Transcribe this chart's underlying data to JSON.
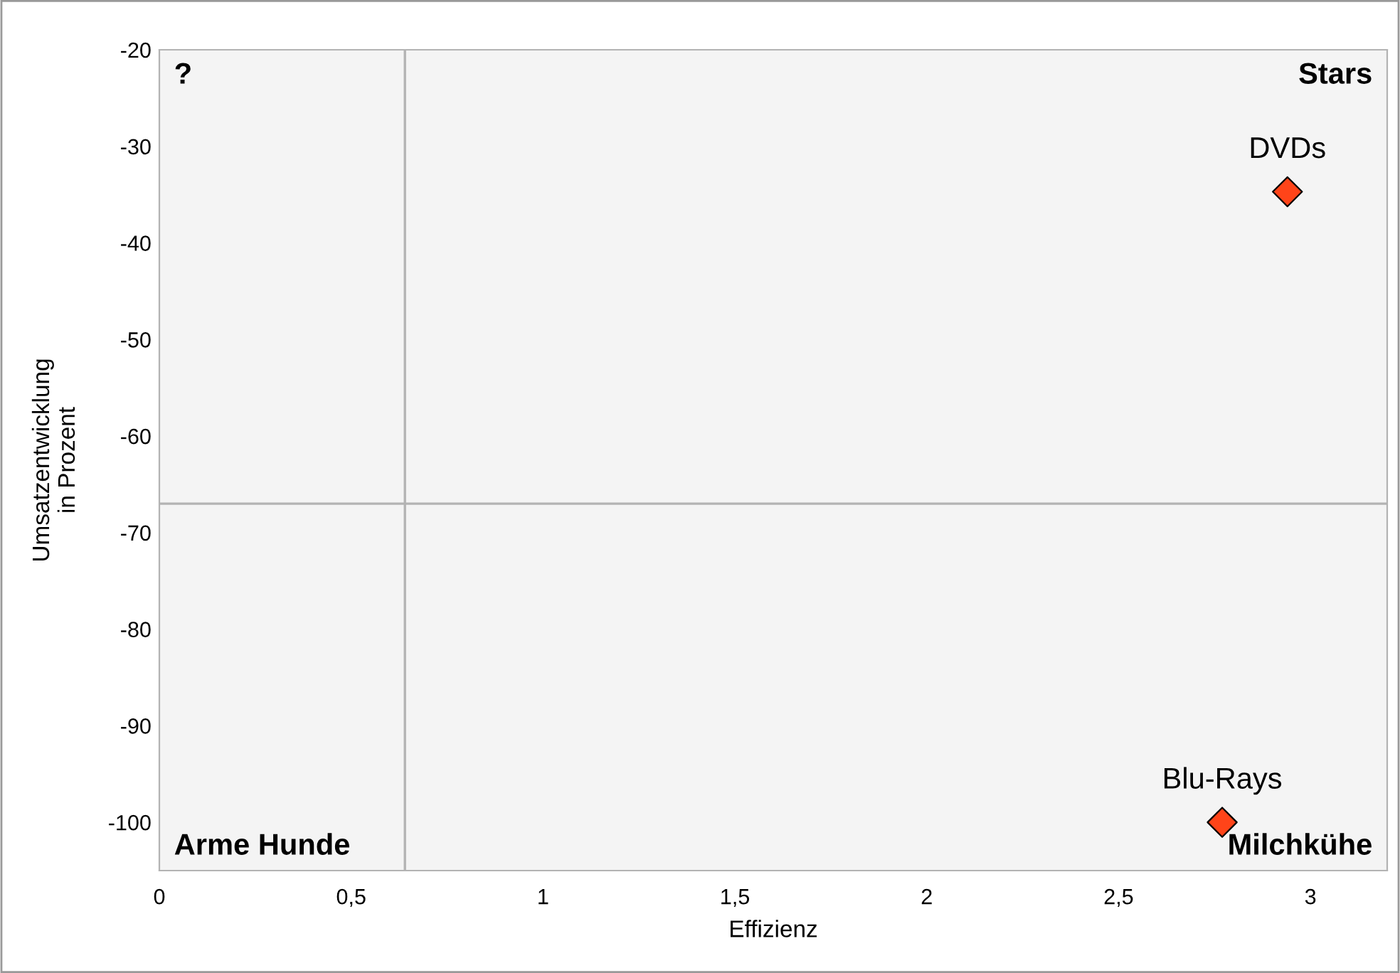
{
  "chart_data": {
    "type": "scatter",
    "xlabel": "Effizienz",
    "ylabel": "Umsatzentwicklung\nin Prozent",
    "x": [
      2.94,
      2.77
    ],
    "series": [
      {
        "color": "#ff4419",
        "values": [
          -34.7,
          -100
        ]
      }
    ],
    "marker": "diamond",
    "xlim": [
      0,
      3.2
    ],
    "ylim": [
      -105,
      -20
    ],
    "xticks": [
      0,
      {
        "value": 0.5,
        "label": "0,5"
      },
      1,
      {
        "value": 1.5,
        "label": "1,5"
      },
      2,
      {
        "value": 2.5,
        "label": "2,5"
      },
      3
    ],
    "yticks": [
      -20,
      -30,
      -40,
      -50,
      -60,
      -70,
      -80,
      -90,
      -100
    ],
    "ref_lines": [
      {
        "axis": "x",
        "value": 0.64,
        "color": "#b3b3b3"
      },
      {
        "axis": "y",
        "value": -67,
        "color": "#b3b3b3"
      }
    ],
    "annotations": [
      {
        "text": "DVDs",
        "x": 2.94,
        "y": -34.7
      },
      {
        "text": "Blu-Rays",
        "x": 2.77,
        "y": -100
      },
      "?",
      "Stars",
      "Arme Hunde",
      "Milchkühe"
    ],
    "grid": false,
    "legend": false
  }
}
